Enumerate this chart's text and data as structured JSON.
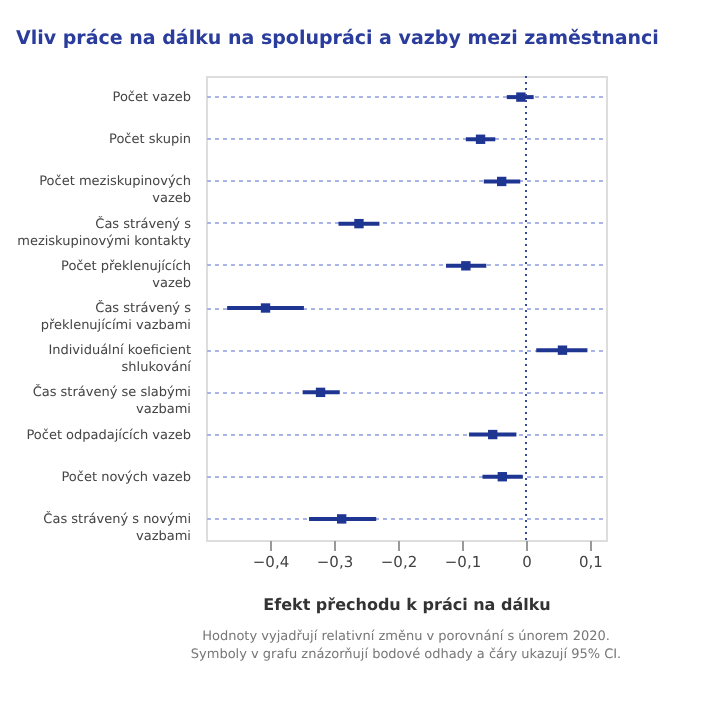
{
  "chart_data": {
    "type": "scatter",
    "orientation": "horizontal",
    "title": "Vliv práce na dálku na spolupráci a vazby mezi zaměstnanci",
    "xlabel": "Efekt přechodu k práci na dálku",
    "categories": [
      "Počet vazeb",
      "Počet skupin",
      "Počet meziskupinových vazeb",
      "Čas strávený s meziskupinovými kontakty",
      "Počet překlenujících vazeb",
      "Čas strávený s překlenujícími vazbami",
      "Individuální koeficient shlukování",
      "Čas strávený se slabými vazbami",
      "Počet odpadajících vazeb",
      "Počet nových vazeb",
      "Čas strávený s novými vazbami"
    ],
    "series": [
      {
        "color": "#1f3592",
        "values": [
          -0.008,
          -0.071,
          -0.038,
          -0.261,
          -0.094,
          -0.407,
          0.057,
          -0.321,
          -0.052,
          -0.037,
          -0.288
        ],
        "errors": [
          [
            -0.03,
            0.012
          ],
          [
            -0.094,
            -0.048
          ],
          [
            -0.066,
            -0.009
          ],
          [
            -0.293,
            -0.229
          ],
          [
            -0.125,
            -0.062
          ],
          [
            -0.467,
            -0.347
          ],
          [
            0.016,
            0.096
          ],
          [
            -0.349,
            -0.291
          ],
          [
            -0.089,
            -0.015
          ],
          [
            -0.068,
            -0.005
          ],
          [
            -0.339,
            -0.234
          ]
        ]
      }
    ],
    "marker": "square",
    "xlim": [
      -0.5,
      0.125
    ],
    "xticks": [
      {
        "value": -0.4,
        "label": "−0,4"
      },
      {
        "value": -0.3,
        "label": "−0,3"
      },
      {
        "value": -0.2,
        "label": "−0,2"
      },
      {
        "value": -0.1,
        "label": "−0,1"
      },
      0,
      {
        "value": 0.1,
        "label": "0,1"
      }
    ],
    "ref_lines": [
      {
        "axis": "x",
        "value": 0,
        "color": "#3a4a9a",
        "line_style": "dotted"
      }
    ],
    "grid": "y",
    "annotations": [
      "Hodnoty vyjadřují relativní změnu v porovnání s únorem 2020.",
      "Symboly v grafu znázorňují bodové odhady a čáry ukazují 95% CI."
    ]
  }
}
